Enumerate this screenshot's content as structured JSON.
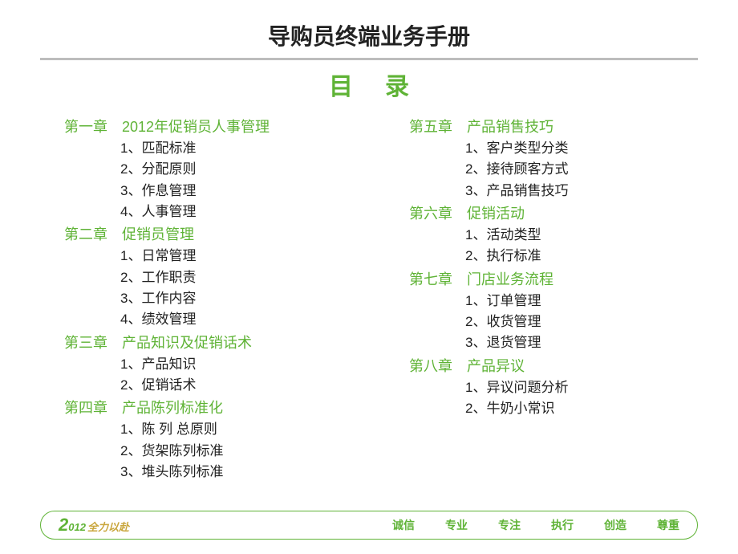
{
  "title": "导购员终端业务手册",
  "toc_label": "目录",
  "colors": {
    "accent": "#5fb336",
    "text": "#222222",
    "underline": "#bdbdbd",
    "gold": "#c9a63c"
  },
  "left_column": [
    {
      "title": "第一章　2012年促销员人事管理",
      "items": [
        "1、匹配标准",
        "2、分配原则",
        "3、作息管理",
        "4、人事管理"
      ]
    },
    {
      "title": "第二章　促销员管理",
      "items": [
        "1、日常管理",
        "2、工作职责",
        "3、工作内容",
        "4、绩效管理"
      ]
    },
    {
      "title": "第三章　产品知识及促销话术",
      "items": [
        "1、产品知识",
        "2、促销话术"
      ]
    },
    {
      "title": "第四章　产品陈列标准化",
      "items": [
        "1、陈 列 总原则",
        "2、货架陈列标准",
        "3、堆头陈列标准"
      ]
    }
  ],
  "right_column": [
    {
      "title": "第五章　产品销售技巧",
      "items": [
        "1、客户类型分类",
        "2、接待顾客方式",
        "3、产品销售技巧"
      ]
    },
    {
      "title": "第六章　促销活动",
      "items": [
        "1、活动类型",
        "2、执行标准"
      ]
    },
    {
      "title": "第七章　门店业务流程",
      "items": [
        "1、订单管理",
        "2、收货管理",
        "3、退货管理"
      ]
    },
    {
      "title": "第八章　产品异议",
      "items": [
        "1、异议问题分析",
        "2、牛奶小常识"
      ]
    }
  ],
  "footer": {
    "logo_big": "2",
    "logo_small": "012",
    "logo_text": "全力以赴",
    "values": [
      "诚信",
      "专业",
      "专注",
      "执行",
      "创造",
      "尊重"
    ]
  }
}
